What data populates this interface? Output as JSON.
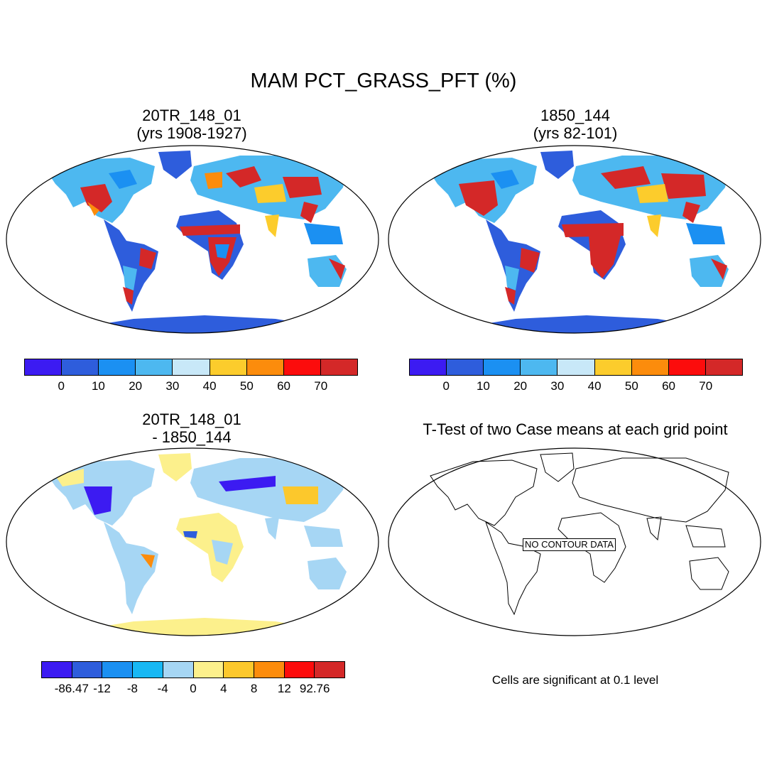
{
  "main_title": "MAM PCT_GRASS_PFT (%)",
  "panels": {
    "top_left": {
      "line1": "20TR_148_01",
      "line2": "(yrs 1908-1927)"
    },
    "top_right": {
      "line1": "1850_144",
      "line2": "(yrs 82-101)"
    },
    "bottom_left": {
      "line1": "20TR_148_01",
      "line2": "- 1850_144"
    },
    "bottom_right": {
      "title": "T-Test of two Case means at each grid point",
      "no_data": "NO CONTOUR DATA",
      "note": "Cells are significant at 0.1 level"
    }
  },
  "colorbar_abs": {
    "colors": [
      "#3c1bf2",
      "#2e5ddc",
      "#1b90f2",
      "#4db8f0",
      "#c8e8f8",
      "#fccc2c",
      "#fc8c0c",
      "#fc0c0c",
      "#d42828"
    ],
    "ticks": [
      "0",
      "10",
      "20",
      "30",
      "40",
      "50",
      "60",
      "70"
    ]
  },
  "colorbar_diff": {
    "colors": [
      "#3c1bf2",
      "#2e5ddc",
      "#1b90f2",
      "#18b8f4",
      "#a6d6f4",
      "#fcf08c",
      "#fcc82c",
      "#fc8c0c",
      "#fc0c0c",
      "#d42828"
    ],
    "ticks": [
      "-86.47",
      "-12",
      "-8",
      "-4",
      "0",
      "4",
      "8",
      "12",
      "92.76"
    ]
  }
}
